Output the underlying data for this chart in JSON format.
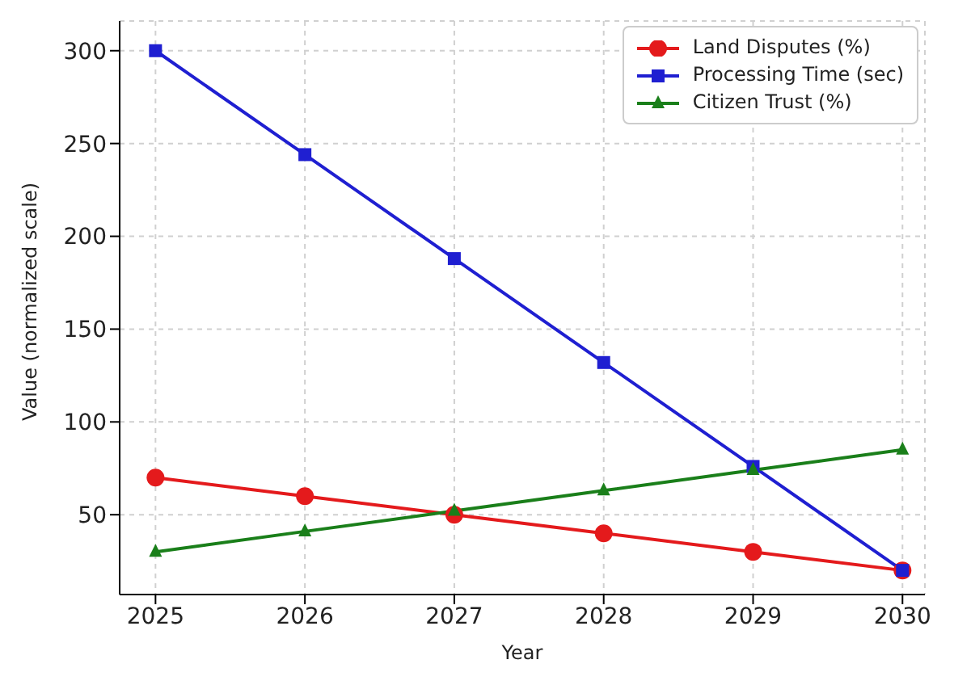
{
  "chart_data": {
    "type": "line",
    "xlabel": "Year",
    "ylabel": "Value (normalized scale)",
    "x": [
      2025,
      2026,
      2027,
      2028,
      2029,
      2030
    ],
    "series": [
      {
        "name": "Land Disputes (%)",
        "color": "#e41a1c",
        "marker": "circle",
        "values": [
          70,
          60,
          50,
          40,
          30,
          20
        ]
      },
      {
        "name": "Processing Time (sec)",
        "color": "#1f1fd1",
        "marker": "square",
        "values": [
          300,
          244,
          188,
          132,
          76,
          20
        ]
      },
      {
        "name": "Citizen Trust (%)",
        "color": "#1a7f1a",
        "marker": "triangle",
        "values": [
          30,
          41,
          52,
          63,
          74,
          85
        ]
      }
    ],
    "xlim": [
      2024.76,
      2030.15
    ],
    "xticks": [
      2025,
      2026,
      2027,
      2028,
      2029,
      2030
    ],
    "ylim": [
      7,
      316
    ],
    "yticks": [
      50,
      100,
      150,
      200,
      250,
      300
    ],
    "grid": true,
    "legend": "top right",
    "line_style": "solid"
  }
}
